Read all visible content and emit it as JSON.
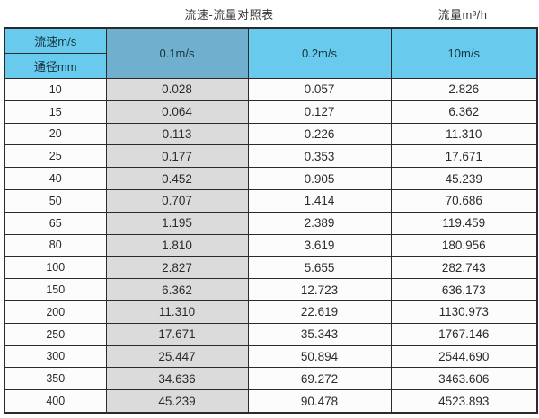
{
  "titles": {
    "main": "流速-流量对照表",
    "right": "流量m³/h"
  },
  "table": {
    "corner_top": "流速m/s",
    "corner_bottom": "通径mm",
    "velocity_columns": [
      "0.1m/s",
      "0.2m/s",
      "10m/s"
    ],
    "rows": [
      {
        "dn": "10",
        "values": [
          "0.028",
          "0.057",
          "2.826"
        ]
      },
      {
        "dn": "15",
        "values": [
          "0.064",
          "0.127",
          "6.362"
        ]
      },
      {
        "dn": "20",
        "values": [
          "0.113",
          "0.226",
          "11.310"
        ]
      },
      {
        "dn": "25",
        "values": [
          "0.177",
          "0.353",
          "17.671"
        ]
      },
      {
        "dn": "40",
        "values": [
          "0.452",
          "0.905",
          "45.239"
        ]
      },
      {
        "dn": "50",
        "values": [
          "0.707",
          "1.414",
          "70.686"
        ]
      },
      {
        "dn": "65",
        "values": [
          "1.195",
          "2.389",
          "119.459"
        ]
      },
      {
        "dn": "80",
        "values": [
          "1.810",
          "3.619",
          "180.956"
        ]
      },
      {
        "dn": "100",
        "values": [
          "2.827",
          "5.655",
          "282.743"
        ]
      },
      {
        "dn": "150",
        "values": [
          "6.362",
          "12.723",
          "636.173"
        ]
      },
      {
        "dn": "200",
        "values": [
          "11.310",
          "22.619",
          "1130.973"
        ]
      },
      {
        "dn": "250",
        "values": [
          "17.671",
          "35.343",
          "1767.146"
        ]
      },
      {
        "dn": "300",
        "values": [
          "25.447",
          "50.894",
          "2544.690"
        ]
      },
      {
        "dn": "350",
        "values": [
          "34.636",
          "69.272",
          "3463.606"
        ]
      },
      {
        "dn": "400",
        "values": [
          "45.239",
          "90.478",
          "4523.893"
        ]
      }
    ]
  },
  "colors": {
    "header_blue": "#68CBEE",
    "header_blue_dark": "#70B0CE",
    "gray_column": "#DBDBDB",
    "border": "#2B2B2B"
  }
}
